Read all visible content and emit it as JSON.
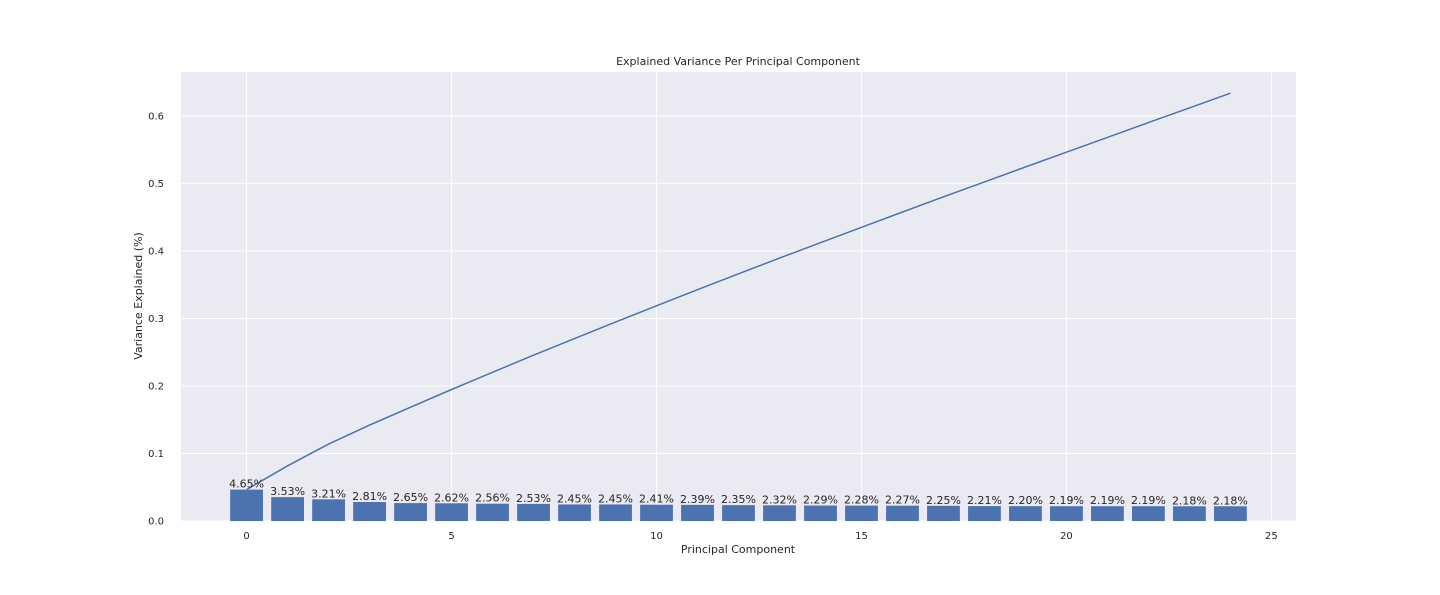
{
  "chart_data": {
    "type": "bar",
    "title": "Explained Variance Per Principal Component",
    "xlabel": "Principal Component",
    "ylabel": "Variance Explained (%)",
    "xlim": [
      -1.6,
      25.6
    ],
    "ylim": [
      0,
      0.665
    ],
    "xticks": [
      0,
      5,
      10,
      15,
      20,
      25
    ],
    "yticks": [
      0.0,
      0.1,
      0.2,
      0.3,
      0.4,
      0.5,
      0.6
    ],
    "grid": true,
    "legend": "none",
    "bar_color": "#4c72b0",
    "line_color": "#4c72b0",
    "background_color": "#eaeaf2",
    "x": [
      0,
      1,
      2,
      3,
      4,
      5,
      6,
      7,
      8,
      9,
      10,
      11,
      12,
      13,
      14,
      15,
      16,
      17,
      18,
      19,
      20,
      21,
      22,
      23,
      24
    ],
    "values": [
      0.0465,
      0.0353,
      0.0321,
      0.0281,
      0.0265,
      0.0262,
      0.0256,
      0.0253,
      0.0245,
      0.0245,
      0.0241,
      0.0239,
      0.0235,
      0.0232,
      0.0229,
      0.0228,
      0.0227,
      0.0225,
      0.0221,
      0.022,
      0.0219,
      0.0219,
      0.0219,
      0.0218,
      0.0218
    ],
    "bar_labels": [
      "4.65%",
      "3.53%",
      "3.21%",
      "2.81%",
      "2.65%",
      "2.62%",
      "2.56%",
      "2.53%",
      "2.45%",
      "2.45%",
      "2.41%",
      "2.39%",
      "2.35%",
      "2.32%",
      "2.29%",
      "2.28%",
      "2.27%",
      "2.25%",
      "2.21%",
      "2.20%",
      "2.19%",
      "2.19%",
      "2.19%",
      "2.18%",
      "2.18%"
    ],
    "cumulative": [
      0.0465,
      0.0818,
      0.1139,
      0.142,
      0.1685,
      0.1947,
      0.2203,
      0.2456,
      0.2701,
      0.2946,
      0.3187,
      0.3426,
      0.3661,
      0.3893,
      0.4122,
      0.435,
      0.4577,
      0.4802,
      0.5023,
      0.5243,
      0.5462,
      0.5681,
      0.59,
      0.6118,
      0.6336
    ]
  }
}
